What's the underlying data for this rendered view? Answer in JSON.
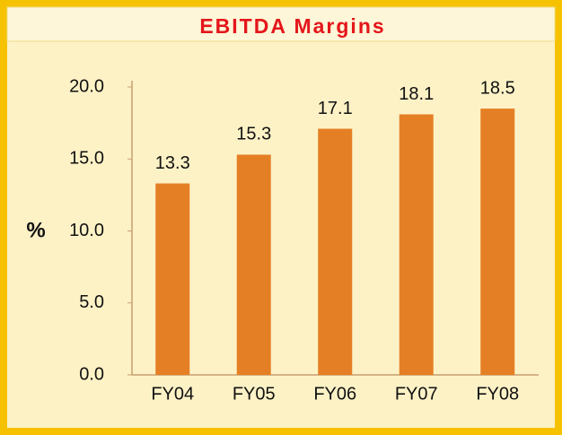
{
  "chart_data": {
    "type": "bar",
    "title": "EBITDA Margins",
    "y_label": "%",
    "categories": [
      "FY04",
      "FY05",
      "FY06",
      "FY07",
      "FY08"
    ],
    "values": [
      13.3,
      15.3,
      17.1,
      18.1,
      18.5
    ],
    "color": "#e57f25",
    "ylim": [
      0,
      20
    ],
    "yticks": [
      {
        "value": 0,
        "label": "0.0"
      },
      {
        "value": 5,
        "label": "5.0"
      },
      {
        "value": 10,
        "label": "10.0"
      },
      {
        "value": 15,
        "label": "15.0"
      },
      {
        "value": 20,
        "label": "20.0"
      }
    ],
    "grid": false
  }
}
